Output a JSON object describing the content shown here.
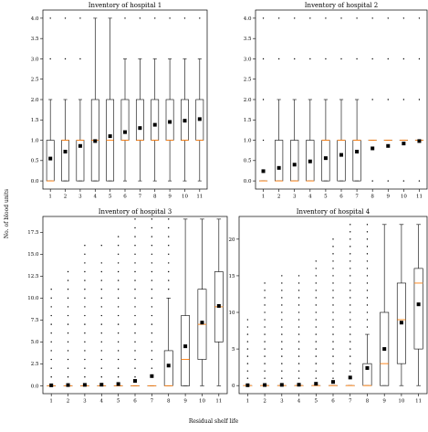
{
  "figure": {
    "ylabel": "No. of blood units",
    "xlabel": "Residual shelf life"
  },
  "colors": {
    "box": "#000000",
    "median": "#ff7f0e",
    "mean": "#000000",
    "flier": "#000000"
  },
  "chart_data": [
    {
      "type": "box",
      "title": "Inventory of hospital 1",
      "categories": [
        1,
        2,
        3,
        4,
        5,
        6,
        7,
        8,
        9,
        10,
        11
      ],
      "ylim": [
        -0.2,
        4.2
      ],
      "yticks": [
        0.0,
        0.5,
        1.0,
        1.5,
        2.0,
        2.5,
        3.0,
        3.5,
        4.0
      ],
      "ytick_labels": [
        "0.0",
        "0.5",
        "1.0",
        "1.5",
        "2.0",
        "2.5",
        "3.0",
        "3.5",
        "4.0"
      ],
      "boxes": [
        {
          "x": 1,
          "q1": 0,
          "median": 0,
          "q3": 1,
          "whislo": 0,
          "whishi": 2,
          "mean": 0.55,
          "fliers": [
            3,
            4
          ]
        },
        {
          "x": 2,
          "q1": 0,
          "median": 1,
          "q3": 1,
          "whislo": 0,
          "whishi": 2,
          "mean": 0.72,
          "fliers": [
            3,
            4
          ]
        },
        {
          "x": 3,
          "q1": 0,
          "median": 1,
          "q3": 1,
          "whislo": 0,
          "whishi": 2,
          "mean": 0.86,
          "fliers": [
            3,
            4
          ]
        },
        {
          "x": 4,
          "q1": 0,
          "median": 1,
          "q3": 2,
          "whislo": 0,
          "whishi": 4,
          "mean": 0.98,
          "fliers": []
        },
        {
          "x": 5,
          "q1": 0,
          "median": 1,
          "q3": 2,
          "whislo": 0,
          "whishi": 4,
          "mean": 1.1,
          "fliers": []
        },
        {
          "x": 6,
          "q1": 1,
          "median": 1,
          "q3": 2,
          "whislo": 0,
          "whishi": 3,
          "mean": 1.2,
          "fliers": [
            4
          ]
        },
        {
          "x": 7,
          "q1": 1,
          "median": 1,
          "q3": 2,
          "whislo": 0,
          "whishi": 3,
          "mean": 1.3,
          "fliers": [
            4
          ]
        },
        {
          "x": 8,
          "q1": 1,
          "median": 1,
          "q3": 2,
          "whislo": 0,
          "whishi": 3,
          "mean": 1.38,
          "fliers": [
            4
          ]
        },
        {
          "x": 9,
          "q1": 1,
          "median": 1,
          "q3": 2,
          "whislo": 0,
          "whishi": 3,
          "mean": 1.45,
          "fliers": [
            4
          ]
        },
        {
          "x": 10,
          "q1": 1,
          "median": 1,
          "q3": 2,
          "whislo": 0,
          "whishi": 3,
          "mean": 1.48,
          "fliers": [
            4
          ]
        },
        {
          "x": 11,
          "q1": 1,
          "median": 1,
          "q3": 2,
          "whislo": 0,
          "whishi": 3,
          "mean": 1.52,
          "fliers": [
            4
          ]
        }
      ]
    },
    {
      "type": "box",
      "title": "Inventory of hospital 2",
      "categories": [
        1,
        2,
        3,
        4,
        5,
        6,
        7,
        8,
        9,
        10,
        11
      ],
      "ylim": [
        -0.2,
        4.2
      ],
      "yticks": [
        0.0,
        0.5,
        1.0,
        1.5,
        2.0,
        2.5,
        3.0,
        3.5,
        4.0
      ],
      "ytick_labels": [
        "0.0",
        "0.5",
        "1.0",
        "1.5",
        "2.0",
        "2.5",
        "3.0",
        "3.5",
        "4.0"
      ],
      "boxes": [
        {
          "x": 1,
          "q1": 0,
          "median": 0,
          "q3": 0,
          "whislo": 0,
          "whishi": 0,
          "mean": 0.24,
          "fliers": [
            1,
            2,
            3,
            4
          ]
        },
        {
          "x": 2,
          "q1": 0,
          "median": 0,
          "q3": 1,
          "whislo": 0,
          "whishi": 2,
          "mean": 0.32,
          "fliers": [
            3,
            4
          ]
        },
        {
          "x": 3,
          "q1": 0,
          "median": 0,
          "q3": 1,
          "whislo": 0,
          "whishi": 2,
          "mean": 0.4,
          "fliers": [
            3,
            4
          ]
        },
        {
          "x": 4,
          "q1": 0,
          "median": 0,
          "q3": 1,
          "whislo": 0,
          "whishi": 2,
          "mean": 0.48,
          "fliers": [
            3,
            4
          ]
        },
        {
          "x": 5,
          "q1": 0,
          "median": 1,
          "q3": 1,
          "whislo": 0,
          "whishi": 2,
          "mean": 0.56,
          "fliers": [
            3,
            4
          ]
        },
        {
          "x": 6,
          "q1": 0,
          "median": 1,
          "q3": 1,
          "whislo": 0,
          "whishi": 2,
          "mean": 0.64,
          "fliers": [
            3,
            4
          ]
        },
        {
          "x": 7,
          "q1": 0,
          "median": 1,
          "q3": 1,
          "whislo": 0,
          "whishi": 2,
          "mean": 0.72,
          "fliers": [
            3,
            4
          ]
        },
        {
          "x": 8,
          "q1": 1,
          "median": 1,
          "q3": 1,
          "whislo": 1,
          "whishi": 1,
          "mean": 0.8,
          "fliers": [
            0,
            2,
            3,
            4
          ]
        },
        {
          "x": 9,
          "q1": 1,
          "median": 1,
          "q3": 1,
          "whislo": 1,
          "whishi": 1,
          "mean": 0.86,
          "fliers": [
            0,
            2,
            3,
            4
          ]
        },
        {
          "x": 10,
          "q1": 1,
          "median": 1,
          "q3": 1,
          "whislo": 1,
          "whishi": 1,
          "mean": 0.92,
          "fliers": [
            0,
            2,
            3,
            4
          ]
        },
        {
          "x": 11,
          "q1": 1,
          "median": 1,
          "q3": 1,
          "whislo": 1,
          "whishi": 1,
          "mean": 0.98,
          "fliers": [
            0,
            2,
            3,
            4
          ]
        }
      ]
    },
    {
      "type": "box",
      "title": "Inventory of hospital 3",
      "categories": [
        1,
        2,
        3,
        4,
        5,
        6,
        7,
        8,
        9,
        10,
        11
      ],
      "ylim": [
        -0.9,
        19.3
      ],
      "yticks": [
        0.0,
        2.5,
        5.0,
        7.5,
        10.0,
        12.5,
        15.0,
        17.5
      ],
      "ytick_labels": [
        "0.0",
        "2.5",
        "5.0",
        "7.5",
        "10.0",
        "12.5",
        "15.0",
        "17.5"
      ],
      "boxes": [
        {
          "x": 1,
          "q1": 0,
          "median": 0,
          "q3": 0,
          "whislo": 0,
          "whishi": 0,
          "mean": 0.05,
          "fliers": [
            1,
            2,
            3,
            4,
            5,
            6,
            7,
            8,
            9,
            10,
            11
          ]
        },
        {
          "x": 2,
          "q1": 0,
          "median": 0,
          "q3": 0,
          "whislo": 0,
          "whishi": 0,
          "mean": 0.08,
          "fliers": [
            1,
            2,
            3,
            4,
            5,
            6,
            7,
            8,
            9,
            10,
            11,
            12,
            13
          ]
        },
        {
          "x": 3,
          "q1": 0,
          "median": 0,
          "q3": 0,
          "whislo": 0,
          "whishi": 0,
          "mean": 0.1,
          "fliers": [
            1,
            2,
            3,
            4,
            5,
            6,
            7,
            8,
            9,
            10,
            11,
            12,
            13,
            14,
            15,
            16
          ]
        },
        {
          "x": 4,
          "q1": 0,
          "median": 0,
          "q3": 0,
          "whislo": 0,
          "whishi": 0,
          "mean": 0.12,
          "fliers": [
            1,
            2,
            3,
            4,
            5,
            6,
            7,
            8,
            9,
            10,
            11,
            12,
            13,
            14,
            16
          ]
        },
        {
          "x": 5,
          "q1": 0,
          "median": 0,
          "q3": 0,
          "whislo": 0,
          "whishi": 0,
          "mean": 0.2,
          "fliers": [
            1,
            2,
            3,
            4,
            5,
            6,
            7,
            8,
            9,
            10,
            11,
            12,
            13,
            14,
            15,
            16,
            17
          ]
        },
        {
          "x": 6,
          "q1": 0,
          "median": 0,
          "q3": 0,
          "whislo": 0,
          "whishi": 0,
          "mean": 0.55,
          "fliers": [
            1,
            2,
            3,
            4,
            5,
            6,
            7,
            8,
            9,
            10,
            11,
            12,
            13,
            14,
            15,
            16,
            17,
            18,
            19
          ]
        },
        {
          "x": 7,
          "q1": 0,
          "median": 0,
          "q3": 0,
          "whislo": 0,
          "whishi": 0,
          "mean": 1.1,
          "fliers": [
            1,
            2,
            3,
            4,
            5,
            6,
            7,
            8,
            9,
            10,
            11,
            12,
            13,
            14,
            15,
            16,
            17,
            18,
            19
          ]
        },
        {
          "x": 8,
          "q1": 0,
          "median": 0,
          "q3": 4,
          "whislo": 0,
          "whishi": 10,
          "mean": 2.3,
          "fliers": [
            11,
            12,
            13,
            14,
            15,
            16,
            17,
            18,
            19
          ]
        },
        {
          "x": 9,
          "q1": 0,
          "median": 3,
          "q3": 8,
          "whislo": 0,
          "whishi": 19,
          "mean": 4.5,
          "fliers": []
        },
        {
          "x": 10,
          "q1": 3,
          "median": 7,
          "q3": 11,
          "whislo": 0,
          "whishi": 19,
          "mean": 7.2,
          "fliers": []
        },
        {
          "x": 11,
          "q1": 5,
          "median": 9,
          "q3": 13,
          "whislo": 0,
          "whishi": 19,
          "mean": 9.1,
          "fliers": []
        }
      ]
    },
    {
      "type": "box",
      "title": "Inventory of hospital 4",
      "categories": [
        1,
        2,
        3,
        4,
        5,
        6,
        7,
        8,
        9,
        10,
        11
      ],
      "ylim": [
        -1.1,
        23.1
      ],
      "yticks": [
        0,
        5,
        10,
        15,
        20
      ],
      "ytick_labels": [
        "0",
        "5",
        "10",
        "15",
        "20"
      ],
      "boxes": [
        {
          "x": 1,
          "q1": 0,
          "median": 0,
          "q3": 0,
          "whislo": 0,
          "whishi": 0,
          "mean": 0.05,
          "fliers": [
            1,
            2,
            3,
            4,
            5,
            6,
            7,
            8,
            9
          ]
        },
        {
          "x": 2,
          "q1": 0,
          "median": 0,
          "q3": 0,
          "whislo": 0,
          "whishi": 0,
          "mean": 0.08,
          "fliers": [
            1,
            2,
            3,
            4,
            5,
            6,
            7,
            8,
            9,
            10,
            11,
            12,
            13,
            14
          ]
        },
        {
          "x": 3,
          "q1": 0,
          "median": 0,
          "q3": 0,
          "whislo": 0,
          "whishi": 0,
          "mean": 0.1,
          "fliers": [
            1,
            2,
            3,
            4,
            5,
            6,
            7,
            8,
            9,
            10,
            11,
            12,
            13,
            14,
            15
          ]
        },
        {
          "x": 4,
          "q1": 0,
          "median": 0,
          "q3": 0,
          "whislo": 0,
          "whishi": 0,
          "mean": 0.12,
          "fliers": [
            1,
            2,
            3,
            4,
            5,
            6,
            7,
            8,
            9,
            10,
            11,
            12,
            13,
            14,
            15
          ]
        },
        {
          "x": 5,
          "q1": 0,
          "median": 0,
          "q3": 0,
          "whislo": 0,
          "whishi": 0,
          "mean": 0.25,
          "fliers": [
            1,
            2,
            3,
            4,
            5,
            6,
            7,
            8,
            9,
            10,
            11,
            12,
            13,
            14,
            15,
            16,
            17
          ]
        },
        {
          "x": 6,
          "q1": 0,
          "median": 0,
          "q3": 0,
          "whislo": 0,
          "whishi": 0,
          "mean": 0.5,
          "fliers": [
            1,
            2,
            3,
            4,
            5,
            6,
            7,
            8,
            9,
            10,
            11,
            12,
            13,
            14,
            15,
            16,
            17,
            18,
            19,
            20
          ]
        },
        {
          "x": 7,
          "q1": 0,
          "median": 0,
          "q3": 0,
          "whislo": 0,
          "whishi": 0,
          "mean": 1.1,
          "fliers": [
            1,
            2,
            3,
            4,
            5,
            6,
            7,
            8,
            9,
            10,
            11,
            12,
            13,
            14,
            15,
            16,
            17,
            18,
            19,
            20,
            21,
            22
          ]
        },
        {
          "x": 8,
          "q1": 0,
          "median": 0,
          "q3": 3,
          "whislo": 0,
          "whishi": 7,
          "mean": 2.4,
          "fliers": [
            8,
            9,
            10,
            11,
            12,
            13,
            14,
            15,
            16,
            17,
            18,
            19,
            20,
            21,
            22
          ]
        },
        {
          "x": 9,
          "q1": 0,
          "median": 3,
          "q3": 10,
          "whislo": 0,
          "whishi": 22,
          "mean": 5.0,
          "fliers": []
        },
        {
          "x": 10,
          "q1": 3,
          "median": 9,
          "q3": 14,
          "whislo": 0,
          "whishi": 22,
          "mean": 8.6,
          "fliers": []
        },
        {
          "x": 11,
          "q1": 5,
          "median": 14,
          "q3": 16,
          "whislo": 0,
          "whishi": 22,
          "mean": 11.1,
          "fliers": []
        }
      ]
    }
  ]
}
